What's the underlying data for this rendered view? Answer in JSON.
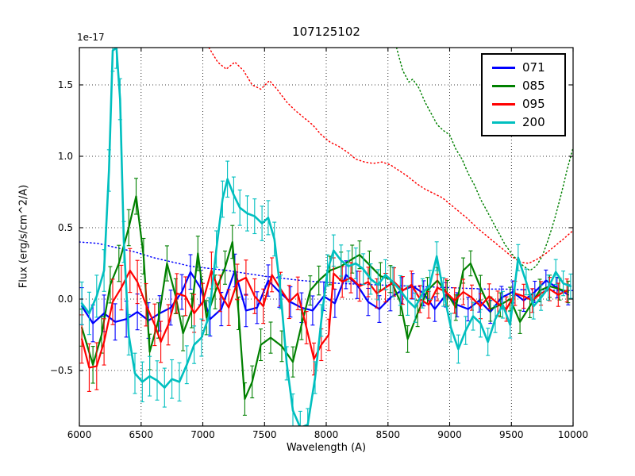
{
  "chart_data": {
    "type": "line",
    "title": "107125102",
    "xlabel": "Wavelength (A)",
    "ylabel": "Flux (erg/s/cm^2/A)",
    "y_offset_text": "1e-17",
    "xlim": [
      6000,
      10000
    ],
    "ylim": [
      -0.889,
      1.761
    ],
    "xticks": [
      6000,
      6500,
      7000,
      7500,
      8000,
      8500,
      9000,
      9500,
      10000
    ],
    "xtick_labels": [
      "6000",
      "6500",
      "7000",
      "7500",
      "8000",
      "8500",
      "9000",
      "9500",
      "10000"
    ],
    "yticks": [
      -0.5,
      0.0,
      0.5,
      1.0,
      1.5
    ],
    "ytick_labels": [
      "−0.5",
      "0.0",
      "0.5",
      "1.0",
      "1.5"
    ],
    "grid": true,
    "grid_style": "dotted",
    "legend": {
      "position": "upper right",
      "entries": [
        {
          "label": "071",
          "color": "#0000ff"
        },
        {
          "label": "085",
          "color": "#008000"
        },
        {
          "label": "095",
          "color": "#ff0000"
        },
        {
          "label": "200",
          "color": "#00bfbf"
        }
      ]
    },
    "series": [
      {
        "name": "071",
        "color": "#0000ff",
        "style": "solid",
        "linewidth": 2.2,
        "x": [
          6020,
          6110,
          6200,
          6290,
          6380,
          6470,
          6560,
          6650,
          6740,
          6830,
          6900,
          6980,
          7060,
          7150,
          7260,
          7350,
          7440,
          7530,
          7620,
          7710,
          7800,
          7890,
          7980,
          8070,
          8160,
          8250,
          8340,
          8430,
          8520,
          8610,
          8700,
          8790,
          8880,
          8970,
          9060,
          9150,
          9240,
          9330,
          9420,
          9510,
          9600,
          9690,
          9780,
          9870,
          9960
        ],
        "y": [
          -0.05,
          -0.17,
          -0.1,
          -0.16,
          -0.14,
          -0.09,
          -0.15,
          -0.1,
          -0.06,
          0.05,
          0.19,
          0.08,
          -0.14,
          -0.07,
          0.2,
          -0.08,
          -0.06,
          0.13,
          0.05,
          -0.02,
          -0.06,
          -0.08,
          0.02,
          -0.03,
          0.17,
          0.1,
          -0.02,
          -0.07,
          0.01,
          0.06,
          0.09,
          0.04,
          -0.07,
          0.03,
          -0.04,
          -0.07,
          -0.01,
          -0.09,
          0.01,
          0.05,
          -0.01,
          0.05,
          0.13,
          0.08,
          0.03
        ],
        "err_profile": {
          "x": [
            6000,
            7000,
            8000,
            9000,
            10000
          ],
          "v": [
            0.13,
            0.12,
            0.1,
            0.085,
            0.07
          ]
        }
      },
      {
        "name": "085",
        "color": "#008000",
        "style": "solid",
        "linewidth": 2.2,
        "x": [
          6020,
          6110,
          6180,
          6250,
          6320,
          6400,
          6460,
          6520,
          6570,
          6640,
          6710,
          6780,
          6840,
          6910,
          6960,
          7030,
          7100,
          7180,
          7240,
          7290,
          7340,
          7400,
          7470,
          7550,
          7640,
          7730,
          7800,
          7870,
          7940,
          8030,
          8120,
          8210,
          8270,
          8350,
          8440,
          8520,
          8600,
          8660,
          8740,
          8820,
          8900,
          8980,
          9050,
          9110,
          9170,
          9250,
          9330,
          9410,
          9490,
          9570,
          9650,
          9730,
          9810,
          9890,
          9960
        ],
        "y": [
          -0.2,
          -0.46,
          -0.25,
          0.1,
          0.25,
          0.5,
          0.72,
          0.3,
          -0.37,
          -0.15,
          0.25,
          0.02,
          -0.24,
          -0.08,
          0.32,
          -0.13,
          0.05,
          0.22,
          0.4,
          -0.1,
          -0.7,
          -0.58,
          -0.32,
          -0.27,
          -0.33,
          -0.44,
          -0.18,
          0.06,
          0.13,
          0.2,
          0.23,
          0.28,
          0.31,
          0.24,
          0.16,
          0.14,
          -0.02,
          -0.28,
          -0.1,
          0.06,
          0.13,
          0.04,
          -0.06,
          0.2,
          0.25,
          0.08,
          -0.07,
          -0.04,
          0.0,
          -0.16,
          -0.05,
          0.06,
          0.09,
          0.07,
          0.05
        ],
        "err_profile": {
          "x": [
            6000,
            7000,
            8000,
            9000,
            10000
          ],
          "v": [
            0.13,
            0.12,
            0.1,
            0.09,
            0.075
          ]
        }
      },
      {
        "name": "095",
        "color": "#ff0000",
        "style": "solid",
        "linewidth": 2.2,
        "x": [
          6020,
          6080,
          6140,
          6200,
          6270,
          6340,
          6410,
          6470,
          6540,
          6610,
          6660,
          6720,
          6790,
          6860,
          6930,
          7000,
          7070,
          7140,
          7210,
          7280,
          7350,
          7420,
          7490,
          7560,
          7630,
          7700,
          7770,
          7840,
          7900,
          7960,
          8020,
          8060,
          8130,
          8200,
          8270,
          8340,
          8410,
          8480,
          8550,
          8620,
          8690,
          8760,
          8830,
          8900,
          8970,
          9040,
          9110,
          9180,
          9250,
          9320,
          9390,
          9460,
          9530,
          9600,
          9670,
          9740,
          9810,
          9880,
          9950
        ],
        "y": [
          -0.28,
          -0.48,
          -0.47,
          -0.3,
          -0.02,
          0.08,
          0.2,
          0.12,
          -0.04,
          -0.18,
          -0.3,
          -0.18,
          0.04,
          0.02,
          -0.1,
          -0.02,
          0.2,
          0.04,
          -0.06,
          0.12,
          0.15,
          0.02,
          -0.05,
          0.17,
          0.07,
          -0.02,
          0.04,
          -0.2,
          -0.42,
          -0.32,
          -0.25,
          0.18,
          0.12,
          0.15,
          0.09,
          0.12,
          0.04,
          0.08,
          0.12,
          0.06,
          0.1,
          0.0,
          -0.04,
          0.08,
          0.05,
          -0.01,
          0.05,
          0.01,
          -0.05,
          0.02,
          -0.03,
          -0.07,
          0.04,
          0.02,
          -0.01,
          0.04,
          0.07,
          0.03,
          0.06
        ],
        "err_profile": {
          "x": [
            6000,
            7000,
            8000,
            9000,
            10000
          ],
          "v": [
            0.17,
            0.13,
            0.11,
            0.09,
            0.08
          ]
        }
      },
      {
        "name": "200",
        "color": "#00bfbf",
        "style": "solid",
        "linewidth": 2.6,
        "x": [
          6020,
          6080,
          6140,
          6200,
          6240,
          6270,
          6300,
          6330,
          6360,
          6400,
          6450,
          6510,
          6570,
          6630,
          6690,
          6750,
          6810,
          6870,
          6930,
          6990,
          7050,
          7110,
          7160,
          7200,
          7250,
          7300,
          7360,
          7420,
          7480,
          7530,
          7580,
          7630,
          7680,
          7730,
          7790,
          7850,
          7910,
          7960,
          8010,
          8060,
          8120,
          8180,
          8240,
          8300,
          8360,
          8420,
          8480,
          8540,
          8600,
          8660,
          8720,
          8780,
          8840,
          8895,
          8950,
          9010,
          9070,
          9130,
          9190,
          9250,
          9310,
          9370,
          9430,
          9490,
          9555,
          9620,
          9680,
          9740,
          9800,
          9860,
          9920,
          9980
        ],
        "y": [
          -0.03,
          -0.1,
          0.02,
          0.2,
          0.9,
          1.74,
          1.76,
          1.4,
          0.4,
          -0.25,
          -0.52,
          -0.58,
          -0.54,
          -0.57,
          -0.62,
          -0.56,
          -0.58,
          -0.46,
          -0.32,
          -0.27,
          -0.12,
          0.35,
          0.7,
          0.84,
          0.73,
          0.64,
          0.6,
          0.58,
          0.53,
          0.57,
          0.42,
          0.05,
          -0.45,
          -0.78,
          -0.9,
          -0.88,
          -0.55,
          -0.15,
          0.2,
          0.34,
          0.27,
          0.23,
          0.25,
          0.21,
          0.14,
          0.1,
          0.17,
          0.12,
          0.06,
          -0.01,
          -0.06,
          0.04,
          0.1,
          0.3,
          0.05,
          -0.2,
          -0.35,
          -0.22,
          -0.12,
          -0.17,
          -0.3,
          -0.14,
          -0.04,
          -0.18,
          0.29,
          0.12,
          -0.05,
          0.01,
          0.08,
          0.19,
          0.11,
          0.09
        ],
        "err_profile": {
          "x": [
            6000,
            7000,
            8000,
            9000,
            10000
          ],
          "v": [
            0.15,
            0.13,
            0.11,
            0.1,
            0.085
          ]
        }
      }
    ],
    "noise_curves": [
      {
        "name": "071-noise",
        "color": "#0000ff",
        "style": "dotted",
        "x": [
          6000,
          6150,
          6300,
          6450,
          6600,
          6750,
          6900,
          7050,
          7200,
          7350,
          7500,
          7650,
          7800,
          7950,
          8100,
          8250,
          8400,
          8550,
          8700,
          8850,
          9000,
          9150,
          9300,
          9450,
          9600,
          9750,
          9900,
          10000
        ],
        "y": [
          0.4,
          0.39,
          0.36,
          0.33,
          0.29,
          0.26,
          0.23,
          0.215,
          0.2,
          0.18,
          0.16,
          0.145,
          0.13,
          0.12,
          0.11,
          0.105,
          0.1,
          0.095,
          0.09,
          0.085,
          0.08,
          0.075,
          0.07,
          0.07,
          0.065,
          0.065,
          0.06,
          0.06
        ]
      },
      {
        "name": "085-noise",
        "color": "#008000",
        "style": "dotted",
        "x": [
          8570,
          8620,
          8670,
          8700,
          8750,
          8800,
          8850,
          8900,
          8950,
          9000,
          9050,
          9100,
          9150,
          9200,
          9250,
          9300,
          9350,
          9400,
          9450,
          9500,
          9550,
          9600,
          9650,
          9700,
          9750,
          9800,
          9850,
          9900,
          9950,
          10000
        ],
        "y": [
          1.76,
          1.6,
          1.52,
          1.54,
          1.48,
          1.38,
          1.3,
          1.22,
          1.18,
          1.15,
          1.05,
          0.98,
          0.88,
          0.8,
          0.7,
          0.62,
          0.54,
          0.46,
          0.38,
          0.32,
          0.27,
          0.23,
          0.2,
          0.23,
          0.3,
          0.42,
          0.56,
          0.72,
          0.9,
          1.06
        ]
      },
      {
        "name": "095-noise",
        "color": "#ff0000",
        "style": "dotted",
        "x": [
          7050,
          7120,
          7190,
          7260,
          7330,
          7400,
          7470,
          7540,
          7610,
          7680,
          7750,
          7820,
          7890,
          7960,
          8030,
          8100,
          8170,
          8240,
          8310,
          8380,
          8450,
          8520,
          8590,
          8660,
          8730,
          8800,
          8870,
          8940,
          9010,
          9080,
          9150,
          9220,
          9290,
          9360,
          9430,
          9500,
          9570,
          9640,
          9710,
          9780,
          9850,
          9920,
          10000
        ],
        "y": [
          1.76,
          1.66,
          1.61,
          1.66,
          1.6,
          1.5,
          1.47,
          1.53,
          1.46,
          1.38,
          1.32,
          1.27,
          1.22,
          1.15,
          1.1,
          1.07,
          1.03,
          0.98,
          0.96,
          0.95,
          0.96,
          0.94,
          0.9,
          0.86,
          0.81,
          0.77,
          0.74,
          0.71,
          0.66,
          0.61,
          0.56,
          0.5,
          0.45,
          0.4,
          0.35,
          0.3,
          0.26,
          0.25,
          0.28,
          0.32,
          0.37,
          0.42,
          0.48
        ]
      }
    ]
  }
}
